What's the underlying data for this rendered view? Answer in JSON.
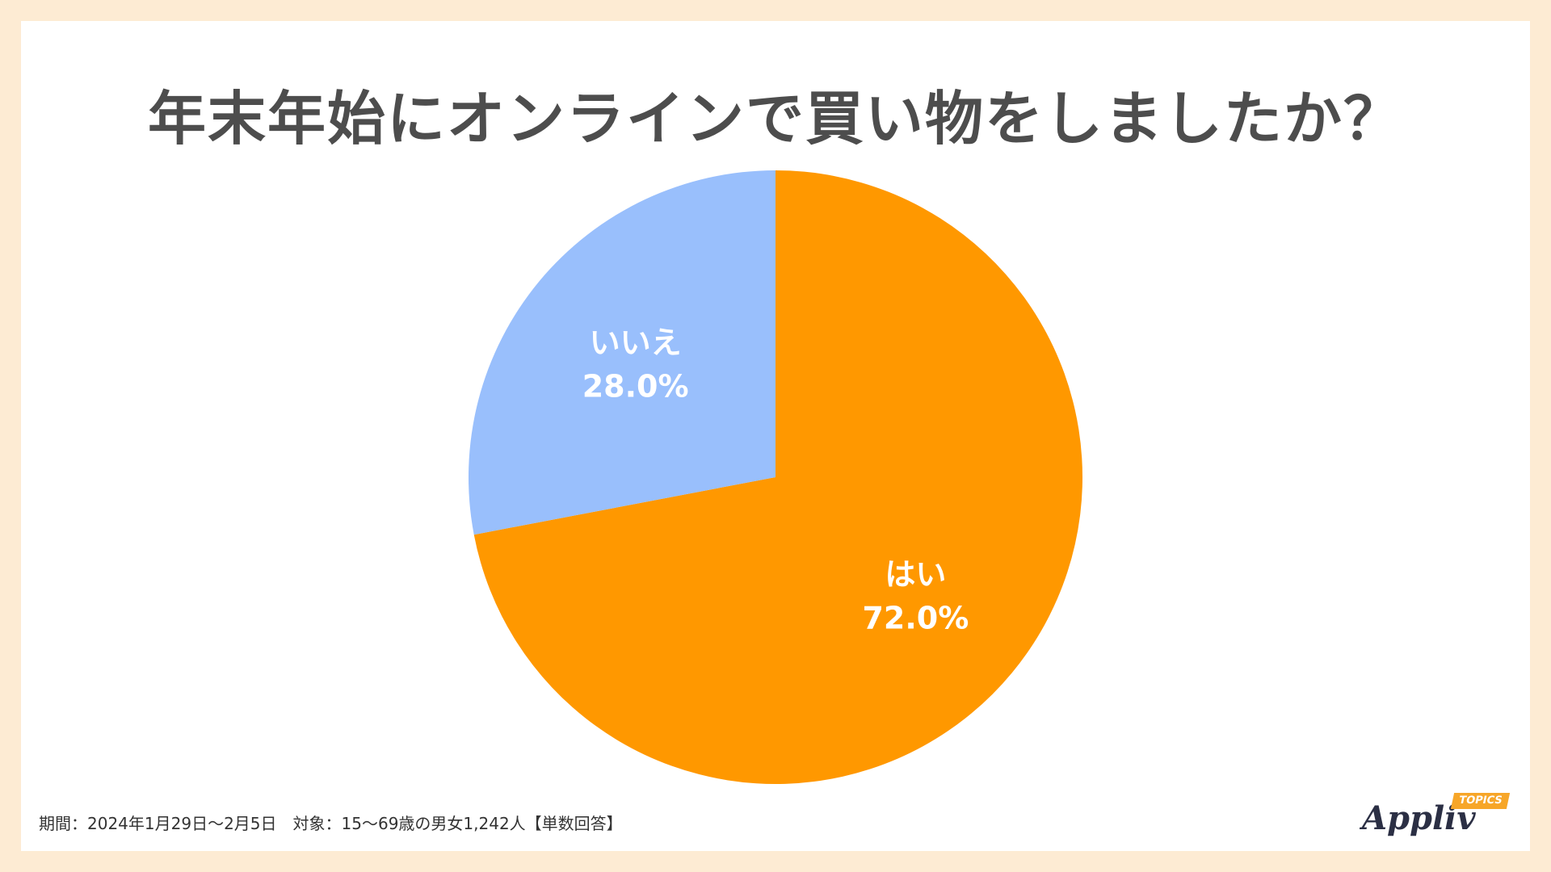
{
  "title": "年末年始にオンラインで買い物をしましたか？",
  "chart_data": {
    "type": "pie",
    "title": "年末年始にオンラインで買い物をしましたか？",
    "start": "12 o'clock, clockwise",
    "slices": [
      {
        "label": "はい",
        "value": 72.0,
        "value_label": "72.0%",
        "color": "#ff9800"
      },
      {
        "label": "いいえ",
        "value": 28.0,
        "value_label": "28.0%",
        "color": "#99bffc"
      }
    ]
  },
  "footnote": "期間：2024年1月29日〜2月5日　対象：15〜69歳の男女1,242人【単数回答】",
  "logo": {
    "word": "Appliv",
    "badge": "TOPICS",
    "badge_color": "#f7a628"
  },
  "colors": {
    "background": "#fdebd3",
    "card": "#ffffff",
    "title": "#4d4d4d"
  }
}
